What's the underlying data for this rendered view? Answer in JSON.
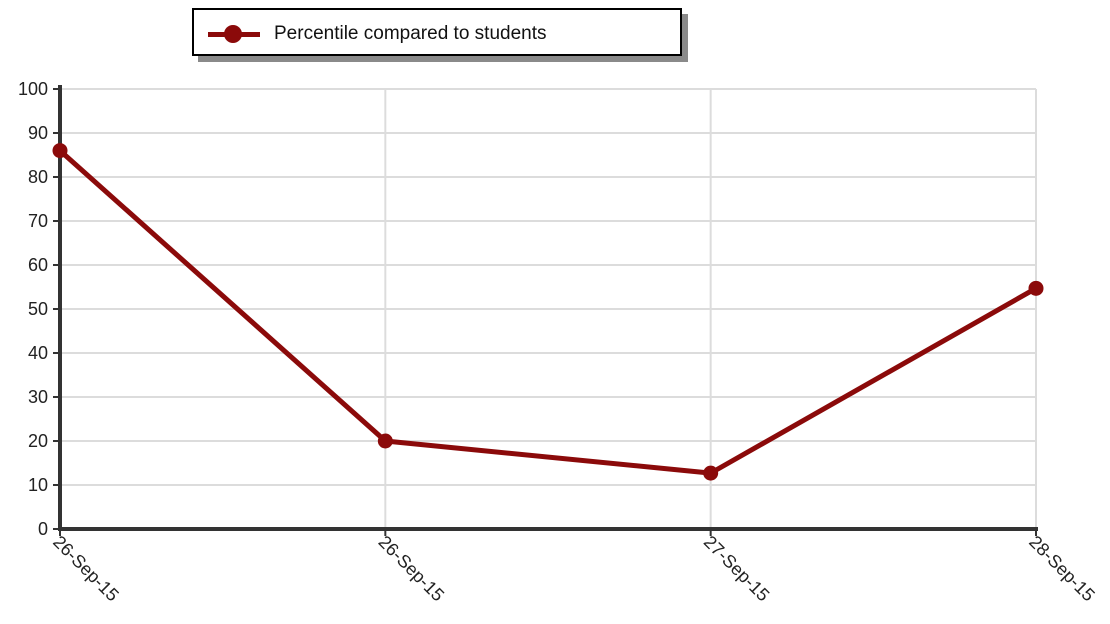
{
  "colors": {
    "series": "#8b0a0a",
    "grid": "#dcdcdc",
    "axis": "#333333",
    "text": "#222222"
  },
  "chart_data": {
    "type": "line",
    "title": "",
    "xlabel": "",
    "ylabel": "",
    "ylim": [
      0,
      100
    ],
    "y_ticks": [
      0,
      10,
      20,
      30,
      40,
      50,
      60,
      70,
      80,
      90,
      100
    ],
    "categories": [
      "26-Sep-15",
      "26-Sep-15",
      "27-Sep-15",
      "28-Sep-15"
    ],
    "series": [
      {
        "name": "Percentile compared to students",
        "values": [
          86,
          20,
          12.7,
          54.7
        ]
      }
    ],
    "grid": true,
    "legend_position": "top-center",
    "x_tick_rotation_deg": 45
  }
}
